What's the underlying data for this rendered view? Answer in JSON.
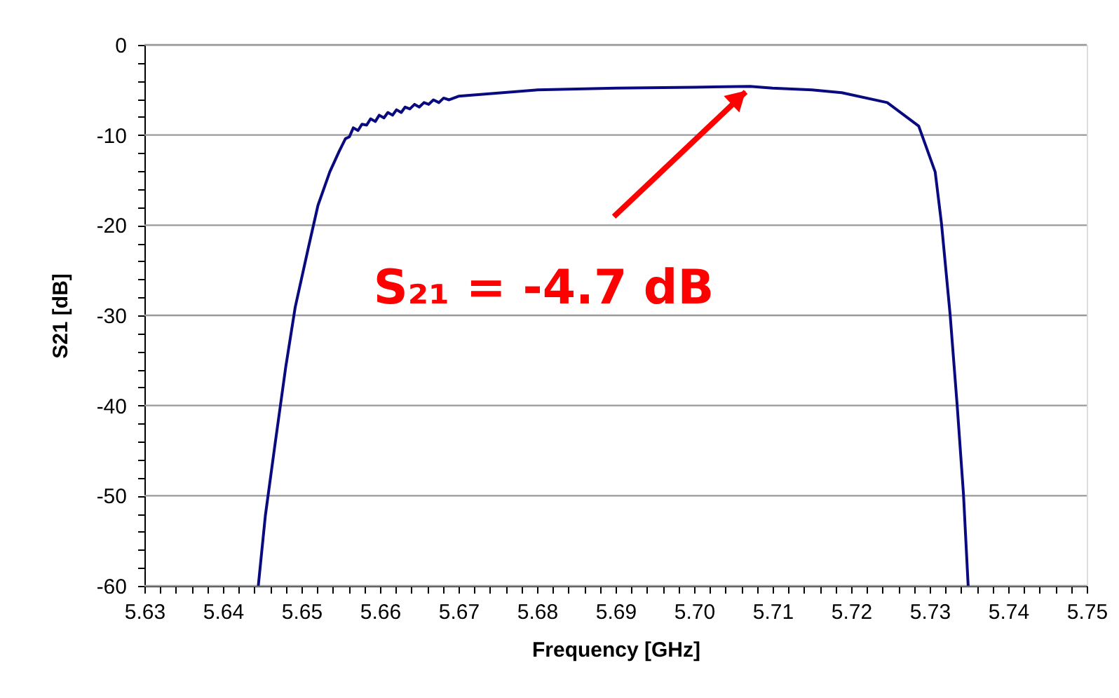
{
  "chart_data": {
    "type": "line",
    "xlabel": "Frequency  [GHz]",
    "ylabel": "S21  [dB]",
    "series": [
      {
        "color": "#0a0a80",
        "x": [
          5.6445,
          5.6454,
          5.6466,
          5.648,
          5.6492,
          5.6509,
          5.6521,
          5.6536,
          5.6548,
          5.6556,
          5.6561,
          5.6566,
          5.6572,
          5.6577,
          5.6583,
          5.6588,
          5.6594,
          5.6599,
          5.6605,
          5.661,
          5.6616,
          5.6621,
          5.6627,
          5.6632,
          5.6638,
          5.6644,
          5.665,
          5.6656,
          5.6662,
          5.6668,
          5.6675,
          5.6681,
          5.6688,
          5.67,
          5.68,
          5.69,
          5.7,
          5.7071,
          5.71,
          5.715,
          5.7188,
          5.7246,
          5.7286,
          5.7307,
          5.7315,
          5.7326,
          5.7335,
          5.7343,
          5.7349
        ],
        "values": [
          -60,
          -52.2,
          -44.5,
          -35.7,
          -29.1,
          -22.4,
          -17.8,
          -14.1,
          -11.8,
          -10.4,
          -10.2,
          -9.2,
          -9.5,
          -8.8,
          -8.9,
          -8.2,
          -8.5,
          -7.8,
          -8.1,
          -7.5,
          -7.8,
          -7.2,
          -7.5,
          -6.9,
          -7.1,
          -6.6,
          -6.9,
          -6.4,
          -6.6,
          -6.1,
          -6.4,
          -5.9,
          -6.1,
          -5.7,
          -5.0,
          -4.8,
          -4.7,
          -4.6,
          -4.8,
          -5.0,
          -5.3,
          -6.4,
          -9.0,
          -14.1,
          -19.8,
          -29.9,
          -40,
          -49.8,
          -60
        ]
      }
    ],
    "xlim": [
      5.63,
      5.75
    ],
    "xticks": [
      5.63,
      {
        "value": 5.632,
        "label": null
      },
      {
        "value": 5.634,
        "label": null
      },
      {
        "value": 5.636,
        "label": null
      },
      {
        "value": 5.638,
        "label": null
      },
      5.64,
      {
        "value": 5.642,
        "label": null
      },
      {
        "value": 5.644,
        "label": null
      },
      {
        "value": 5.646,
        "label": null
      },
      {
        "value": 5.648,
        "label": null
      },
      5.65,
      {
        "value": 5.652,
        "label": null
      },
      {
        "value": 5.654,
        "label": null
      },
      {
        "value": 5.656,
        "label": null
      },
      {
        "value": 5.658,
        "label": null
      },
      5.66,
      {
        "value": 5.662,
        "label": null
      },
      {
        "value": 5.664,
        "label": null
      },
      {
        "value": 5.666,
        "label": null
      },
      {
        "value": 5.668,
        "label": null
      },
      5.67,
      {
        "value": 5.672,
        "label": null
      },
      {
        "value": 5.674,
        "label": null
      },
      {
        "value": 5.676,
        "label": null
      },
      {
        "value": 5.678,
        "label": null
      },
      5.68,
      {
        "value": 5.682,
        "label": null
      },
      {
        "value": 5.684,
        "label": null
      },
      {
        "value": 5.686,
        "label": null
      },
      {
        "value": 5.688,
        "label": null
      },
      5.69,
      {
        "value": 5.692,
        "label": null
      },
      {
        "value": 5.694,
        "label": null
      },
      {
        "value": 5.696,
        "label": null
      },
      {
        "value": 5.698,
        "label": null
      },
      {
        "value": 5.7,
        "label": "5.70"
      },
      {
        "value": 5.702,
        "label": null
      },
      {
        "value": 5.704,
        "label": null
      },
      {
        "value": 5.706,
        "label": null
      },
      {
        "value": 5.708,
        "label": null
      },
      5.71,
      {
        "value": 5.712,
        "label": null
      },
      {
        "value": 5.714,
        "label": null
      },
      {
        "value": 5.716,
        "label": null
      },
      {
        "value": 5.718,
        "label": null
      },
      5.72,
      {
        "value": 5.722,
        "label": null
      },
      {
        "value": 5.724,
        "label": null
      },
      {
        "value": 5.726,
        "label": null
      },
      {
        "value": 5.728,
        "label": null
      },
      5.73,
      {
        "value": 5.732,
        "label": null
      },
      {
        "value": 5.734,
        "label": null
      },
      {
        "value": 5.736,
        "label": null
      },
      {
        "value": 5.738,
        "label": null
      },
      5.74,
      {
        "value": 5.742,
        "label": null
      },
      {
        "value": 5.744,
        "label": null
      },
      {
        "value": 5.746,
        "label": null
      },
      {
        "value": 5.748,
        "label": null
      },
      5.75
    ],
    "ylim": [
      -60,
      0
    ],
    "yticks": [
      -60,
      {
        "value": -58,
        "label": null
      },
      {
        "value": -56,
        "label": null
      },
      {
        "value": -54,
        "label": null
      },
      {
        "value": -52,
        "label": null
      },
      -50,
      {
        "value": -48,
        "label": null
      },
      {
        "value": -46,
        "label": null
      },
      {
        "value": -44,
        "label": null
      },
      {
        "value": -42,
        "label": null
      },
      -40,
      {
        "value": -38,
        "label": null
      },
      {
        "value": -36,
        "label": null
      },
      {
        "value": -34,
        "label": null
      },
      {
        "value": -32,
        "label": null
      },
      -30,
      {
        "value": -28,
        "label": null
      },
      {
        "value": -26,
        "label": null
      },
      {
        "value": -24,
        "label": null
      },
      {
        "value": -22,
        "label": null
      },
      -20,
      {
        "value": -18,
        "label": null
      },
      {
        "value": -16,
        "label": null
      },
      {
        "value": -14,
        "label": null
      },
      {
        "value": -12,
        "label": null
      },
      -10,
      {
        "value": -8,
        "label": null
      },
      {
        "value": -6,
        "label": null
      },
      {
        "value": -4,
        "label": null
      },
      {
        "value": -2,
        "label": null
      },
      0
    ],
    "grid": "y",
    "marker": "none",
    "line_style": "solid",
    "annotations": [
      {
        "text": "S₂₁ = -4.7 dB",
        "x": 5.7071,
        "y": -4.6
      }
    ]
  }
}
